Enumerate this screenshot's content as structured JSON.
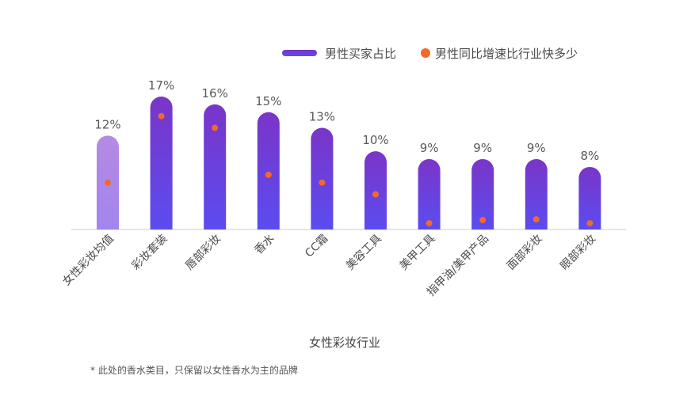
{
  "chart_data": {
    "type": "bar",
    "xlabel": "女性彩妆行业",
    "categories": [
      "女性彩妆均值",
      "彩妆套装",
      "唇部彩妆",
      "香水",
      "CC霜",
      "美容工具",
      "美甲工具",
      "指甲油/美甲产品",
      "面部彩妆",
      "眼部彩妆"
    ],
    "series": [
      {
        "name": "男性买家占比",
        "type": "bar",
        "values": [
          12,
          17,
          16,
          15,
          13,
          10,
          9,
          9,
          9,
          8
        ],
        "labels": [
          "12%",
          "17%",
          "16%",
          "15%",
          "13%",
          "10%",
          "9%",
          "9%",
          "9%",
          "8%"
        ]
      },
      {
        "name": "男性同比增速比行业快多少",
        "type": "scatter",
        "values": [
          6,
          14.5,
          13,
          7,
          6,
          4.5,
          0.8,
          1.2,
          1.3,
          0.8
        ]
      }
    ],
    "ylim": [
      0,
      17
    ],
    "legend_position": "top-right",
    "colors": {
      "bar_top": "#7a35c8",
      "bar_bottom": "#5b4cf0",
      "avg_bar_top": "#b48ae3",
      "avg_bar_bottom": "#a385ee",
      "dot": "#f26a2a",
      "axis": "#cccccc"
    }
  },
  "footnote": "* 此处的香水类目，只保留以女性香水为主的品牌"
}
